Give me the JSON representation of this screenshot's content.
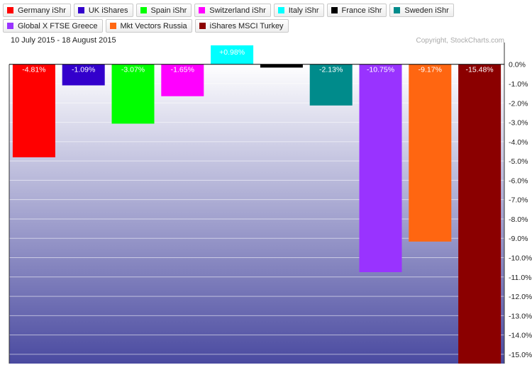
{
  "date_range": "10 July 2015 - 18 August 2015",
  "copyright": "Copyright, StockCharts.com",
  "chart_data": {
    "type": "bar",
    "title": "",
    "xlabel": "",
    "ylabel": "",
    "ylim": [
      -15.48,
      0.98
    ],
    "grid": true,
    "legend_position": "top",
    "y_ticks": [
      "0.0%",
      "-1.0%",
      "-2.0%",
      "-3.0%",
      "-4.0%",
      "-5.0%",
      "-6.0%",
      "-7.0%",
      "-8.0%",
      "-9.0%",
      "-10.0%",
      "-11.0%",
      "-12.0%",
      "-13.0%",
      "-14.0%",
      "-15.0%"
    ],
    "categories": [
      "Germany iShr",
      "UK iShares",
      "Spain iShr",
      "Switzerland iShr",
      "Italy iShr",
      "France iShr",
      "Sweden iShr",
      "Global X FTSE Greece",
      "Mkt Vectors Russia",
      "iShares MSCI Turkey"
    ],
    "values": [
      -4.81,
      -1.09,
      -3.07,
      -1.65,
      0.98,
      -0.17,
      -2.13,
      -10.75,
      -9.17,
      -15.48
    ],
    "value_labels": [
      "-4.81%",
      "-1.09%",
      "-3.07%",
      "-1.65%",
      "+0.98%",
      "",
      "-2.13%",
      "-10.75%",
      "-9.17%",
      "-15.48%"
    ],
    "colors": [
      "#ff0000",
      "#3300cc",
      "#00ff00",
      "#ff00ff",
      "#00ffff",
      "#000000",
      "#008b8b",
      "#9933ff",
      "#ff6611",
      "#8b0000"
    ]
  }
}
